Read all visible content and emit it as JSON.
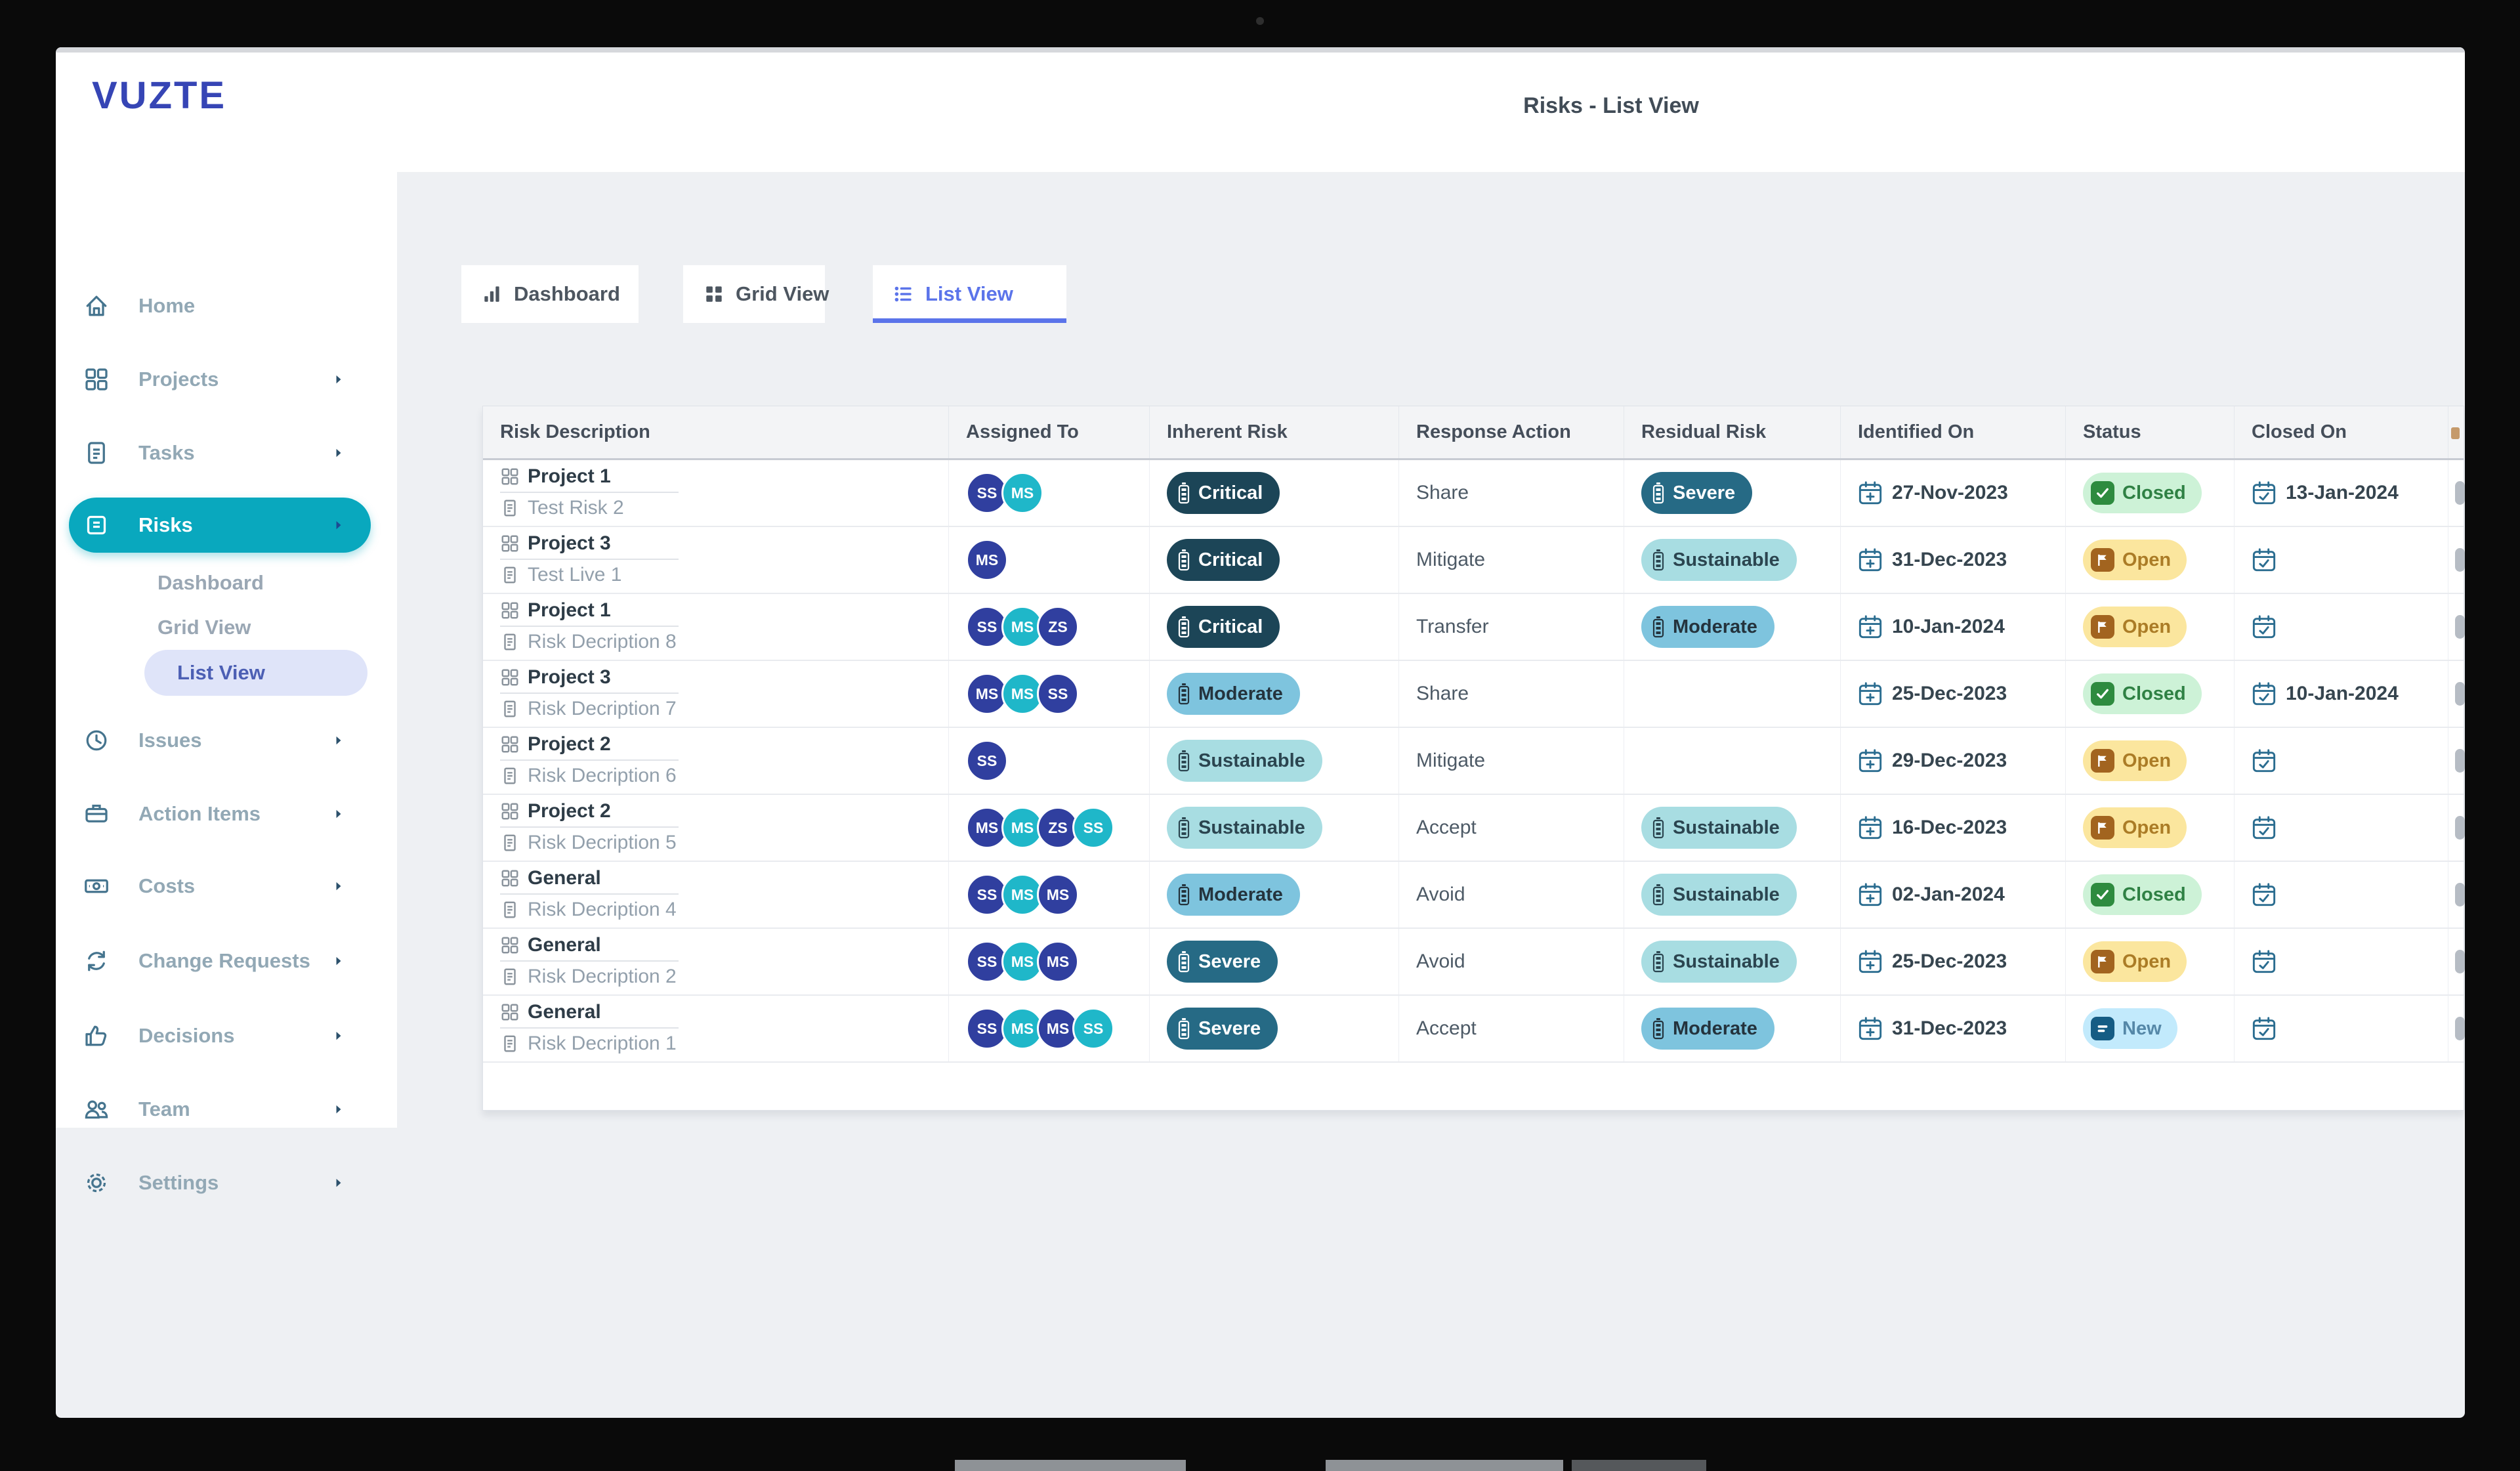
{
  "window": {
    "title": "Risks - List View"
  },
  "brand": {
    "logo": "VUZTE"
  },
  "sidebar": {
    "items": [
      {
        "label": "Home",
        "icon": "home-icon",
        "type": "item",
        "arrow": false,
        "active": false
      },
      {
        "label": "Projects",
        "icon": "projects-grid-icon",
        "type": "item",
        "arrow": true,
        "active": false
      },
      {
        "label": "Tasks",
        "icon": "tasks-document-icon",
        "type": "item",
        "arrow": true,
        "active": false
      },
      {
        "label": "Risks",
        "icon": "risks-clipboard-icon",
        "type": "item",
        "arrow": true,
        "active": true
      },
      {
        "label": "Dashboard",
        "type": "sub",
        "active": false
      },
      {
        "label": "Grid View",
        "type": "sub",
        "active": false
      },
      {
        "label": "List View",
        "type": "sub",
        "active": true
      },
      {
        "label": "Issues",
        "icon": "issues-clock-icon",
        "type": "item",
        "arrow": true,
        "active": false
      },
      {
        "label": "Action Items",
        "icon": "action-items-briefcase-icon",
        "type": "item",
        "arrow": true,
        "active": false
      },
      {
        "label": "Costs",
        "icon": "costs-banknote-icon",
        "type": "item",
        "arrow": true,
        "active": false
      },
      {
        "label": "Change Requests",
        "icon": "change-requests-sync-icon",
        "type": "item",
        "arrow": true,
        "active": false
      },
      {
        "label": "Decisions",
        "icon": "decisions-thumb-icon",
        "type": "item",
        "arrow": true,
        "active": false
      },
      {
        "label": "Team",
        "icon": "team-people-icon",
        "type": "item",
        "arrow": true,
        "active": false
      },
      {
        "label": "Settings",
        "icon": "settings-gear-icon",
        "type": "item",
        "arrow": true,
        "active": false
      }
    ]
  },
  "tabs": [
    {
      "label": "Dashboard",
      "icon": "bar-chart-icon",
      "active": false
    },
    {
      "label": "Grid View",
      "icon": "grid-icon",
      "active": false
    },
    {
      "label": "List View",
      "icon": "list-icon",
      "active": true
    }
  ],
  "table": {
    "columns": [
      "Risk Description",
      "Assigned To",
      "Inherent Risk",
      "Response Action",
      "Residual Risk",
      "Identified On",
      "Status",
      "Closed On"
    ],
    "rows": [
      {
        "project": "Project 1",
        "risk": "Test Risk 2",
        "assignees": [
          {
            "initials": "SS",
            "color": "indigo"
          },
          {
            "initials": "MS",
            "color": "teal"
          }
        ],
        "inherent": "Critical",
        "response": "Share",
        "residual": "Severe",
        "identified": "27-Nov-2023",
        "status": "Closed",
        "closed_on": "13-Jan-2024"
      },
      {
        "project": "Project 3",
        "risk": "Test Live 1",
        "assignees": [
          {
            "initials": "MS",
            "color": "indigo"
          }
        ],
        "inherent": "Critical",
        "response": "Mitigate",
        "residual": "Sustainable",
        "identified": "31-Dec-2023",
        "status": "Open",
        "closed_on": null
      },
      {
        "project": "Project 1",
        "risk": "Risk Decription 8",
        "assignees": [
          {
            "initials": "SS",
            "color": "indigo"
          },
          {
            "initials": "MS",
            "color": "teal"
          },
          {
            "initials": "ZS",
            "color": "indigo"
          }
        ],
        "inherent": "Critical",
        "response": "Transfer",
        "residual": "Moderate",
        "identified": "10-Jan-2024",
        "status": "Open",
        "closed_on": null
      },
      {
        "project": "Project 3",
        "risk": "Risk Decription 7",
        "assignees": [
          {
            "initials": "MS",
            "color": "indigo"
          },
          {
            "initials": "MS",
            "color": "teal"
          },
          {
            "initials": "SS",
            "color": "indigo"
          }
        ],
        "inherent": "Moderate",
        "response": "Share",
        "residual": null,
        "identified": "25-Dec-2023",
        "status": "Closed",
        "closed_on": "10-Jan-2024"
      },
      {
        "project": "Project 2",
        "risk": "Risk Decription 6",
        "assignees": [
          {
            "initials": "SS",
            "color": "indigo"
          }
        ],
        "inherent": "Sustainable",
        "response": "Mitigate",
        "residual": null,
        "identified": "29-Dec-2023",
        "status": "Open",
        "closed_on": null
      },
      {
        "project": "Project 2",
        "risk": "Risk Decription 5",
        "assignees": [
          {
            "initials": "MS",
            "color": "indigo"
          },
          {
            "initials": "MS",
            "color": "teal"
          },
          {
            "initials": "ZS",
            "color": "indigo"
          },
          {
            "initials": "SS",
            "color": "teal"
          }
        ],
        "inherent": "Sustainable",
        "response": "Accept",
        "residual": "Sustainable",
        "identified": "16-Dec-2023",
        "status": "Open",
        "closed_on": null
      },
      {
        "project": "General",
        "risk": "Risk Decription 4",
        "assignees": [
          {
            "initials": "SS",
            "color": "indigo"
          },
          {
            "initials": "MS",
            "color": "teal"
          },
          {
            "initials": "MS",
            "color": "indigo"
          }
        ],
        "inherent": "Moderate",
        "response": "Avoid",
        "residual": "Sustainable",
        "identified": "02-Jan-2024",
        "status": "Closed",
        "closed_on": null
      },
      {
        "project": "General",
        "risk": "Risk Decription 2",
        "assignees": [
          {
            "initials": "SS",
            "color": "indigo"
          },
          {
            "initials": "MS",
            "color": "teal"
          },
          {
            "initials": "MS",
            "color": "indigo"
          }
        ],
        "inherent": "Severe",
        "response": "Avoid",
        "residual": "Sustainable",
        "identified": "25-Dec-2023",
        "status": "Open",
        "closed_on": null
      },
      {
        "project": "General",
        "risk": "Risk Decription 1",
        "assignees": [
          {
            "initials": "SS",
            "color": "indigo"
          },
          {
            "initials": "MS",
            "color": "teal"
          },
          {
            "initials": "MS",
            "color": "indigo"
          },
          {
            "initials": "SS",
            "color": "teal"
          }
        ],
        "inherent": "Severe",
        "response": "Accept",
        "residual": "Moderate",
        "identified": "31-Dec-2023",
        "status": "New",
        "closed_on": null
      }
    ]
  },
  "colors": {
    "accent_teal": "#09a8be",
    "active_tab_blue": "#5b74ea",
    "logo_blue": "#3645b5",
    "avatar_indigo": "#303f9f",
    "avatar_teal": "#1fb7c9",
    "pill_critical": "#1c4557",
    "pill_severe": "#266a85",
    "pill_moderate": "#7ec4de",
    "pill_sustainable": "#a8dde2",
    "status_closed_bg": "#cdf2d7",
    "status_open_bg": "#fbe69e",
    "status_new_bg": "#c2eafc"
  }
}
